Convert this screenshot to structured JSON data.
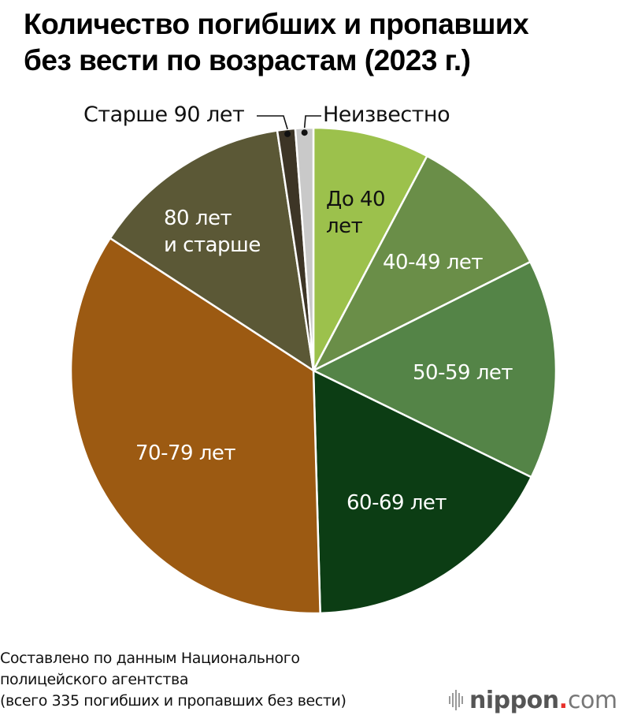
{
  "title": {
    "line1": "Количество погибших и пропавших",
    "line2": "без вести по возрастам (2023 г.)"
  },
  "labels": {
    "under40_l1": "До 40",
    "under40_l2": "лет",
    "a40_49": "40-49 лет",
    "a50_59": "50-59 лет",
    "a60_69": "60-69 лет",
    "a70_79": "70-79 лет",
    "a80_l1": "80 лет",
    "a80_l2": "и старше",
    "over90": "Старше 90 лет",
    "unknown": "Неизвестно"
  },
  "source": {
    "line1": "Составлено по данным Национального",
    "line2": "полицейского агентства",
    "line3": "(всего 335 погибших и пропавших без вести)"
  },
  "logo": {
    "name": "nippon",
    "dot": ".",
    "tld": "com"
  },
  "chart_data": {
    "type": "pie",
    "title": "Количество погибших и пропавших без вести по возрастам (2023 г.)",
    "total": 335,
    "categories": [
      "До 40 лет",
      "40-49 лет",
      "50-59 лет",
      "60-69 лет",
      "70-79 лет",
      "80 лет и старше",
      "Старше 90 лет",
      "Неизвестно"
    ],
    "values": [
      26,
      33,
      49,
      58,
      116,
      45,
      4,
      4
    ],
    "colors": [
      "#9cc14c",
      "#6a8e48",
      "#548447",
      "#0c3d14",
      "#9c5a12",
      "#5b5836",
      "#3d3526",
      "#c9c9c9"
    ],
    "start_angle_deg": 0,
    "direction": "clockwise",
    "source_note": "Составлено по данным Национального полицейского агентства (всего 335 погибших и пропавших без вести)"
  }
}
